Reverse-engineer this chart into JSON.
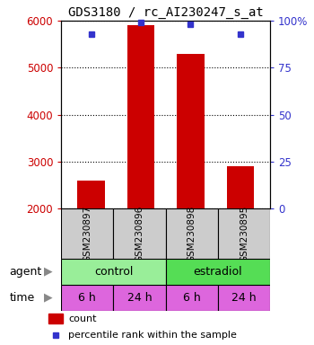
{
  "title": "GDS3180 / rc_AI230247_s_at",
  "samples": [
    "GSM230897",
    "GSM230896",
    "GSM230898",
    "GSM230895"
  ],
  "counts": [
    2600,
    5900,
    5300,
    2900
  ],
  "percentiles": [
    93,
    99,
    98,
    93
  ],
  "ylim_left": [
    2000,
    6000
  ],
  "ylim_right": [
    0,
    100
  ],
  "yticks_left": [
    2000,
    3000,
    4000,
    5000,
    6000
  ],
  "yticks_right": [
    0,
    25,
    50,
    75,
    100
  ],
  "bar_color": "#cc0000",
  "dot_color": "#3333cc",
  "bar_width": 0.55,
  "agent_labels": [
    "control",
    "estradiol"
  ],
  "time_labels": [
    "6 h",
    "24 h",
    "6 h",
    "24 h"
  ],
  "agent_color": "#99ee99",
  "agent_color2": "#55dd55",
  "time_color": "#dd66dd",
  "sample_bg_color": "#cccccc",
  "legend_count_color": "#cc0000",
  "legend_pct_color": "#3333cc",
  "left_tick_color": "#cc0000",
  "right_tick_color": "#3333cc",
  "bg_color": "#ffffff"
}
